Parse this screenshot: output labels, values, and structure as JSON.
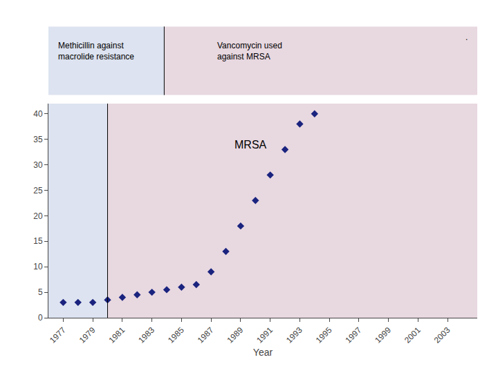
{
  "chart_data": {
    "type": "scatter",
    "x": [
      1977,
      1978,
      1979,
      1980,
      1981,
      1982,
      1983,
      1984,
      1985,
      1986,
      1987,
      1988,
      1989,
      1990,
      1991,
      1992,
      1993,
      1994
    ],
    "values": [
      3,
      3,
      3,
      3.5,
      4,
      4.5,
      5,
      5.5,
      6,
      6.5,
      9,
      13,
      18,
      23,
      28,
      33,
      38,
      40
    ],
    "color": "#1a237e",
    "marker": "diamond",
    "xlabel": "Year",
    "xlim": [
      1976,
      2005
    ],
    "xticks": [
      1977,
      1979,
      1981,
      1983,
      1985,
      1987,
      1989,
      1991,
      1993,
      1995,
      1997,
      1999,
      2001,
      2003
    ],
    "ylim": [
      0,
      42
    ],
    "yticks": [
      0,
      5,
      10,
      15,
      20,
      25,
      30,
      35,
      40
    ],
    "grid": false,
    "divider": 1980,
    "regions": [
      {
        "label": "Methicillin against\nmacrolide resistance",
        "color": "#dde3f0"
      },
      {
        "label": "Vancomycin used\nagainst MRSA",
        "color": "#e8d8e0",
        "decoration": "."
      }
    ],
    "annotations": [
      {
        "text": "MRSA",
        "x": 1988.5,
        "y": 34
      }
    ]
  }
}
